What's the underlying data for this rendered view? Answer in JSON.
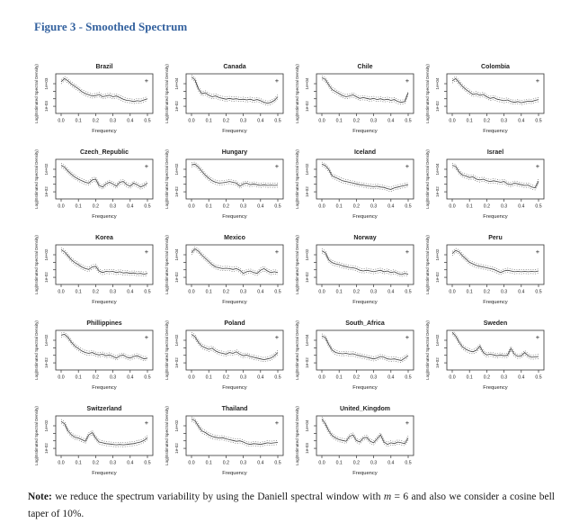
{
  "page": {
    "figure_title": "Figure 3 - Smoothed Spectrum",
    "title_color": "#33619E",
    "note": {
      "label": "Note:",
      "text_before_m": "  we reduce the spectrum variability by using the Daniell spectral window with ",
      "m_symbol": "m",
      "text_after_m": " = 6 and also we consider a cosine bell taper of 10%."
    }
  },
  "axes": {
    "xlabel": "Frequency",
    "ylabel": "Log(Estimated Spectral Density)",
    "x_ticks": [
      "0.0",
      "0.1",
      "0.2",
      "0.3",
      "0.4",
      "0.5"
    ],
    "legend_marker": "+",
    "line_color": "#3c3c3c",
    "band_color": "#5a5a5a"
  },
  "chart_data": {
    "type": "line",
    "title": "Smoothed Spectrum",
    "xlabel": "Frequency",
    "ylabel": "Log(Estimated Spectral Density)",
    "xlim": [
      0.0,
      0.5
    ],
    "grid": false,
    "layout": {
      "rows": 5,
      "cols": 4,
      "plots": 19
    },
    "series_note": "Each subplot: smoothed log spectral density with dotted confidence band (marker '+' legend top-right). y values are fractions of plot-box height between the two labeled log-scale ticks.",
    "x": [
      0.0,
      0.02,
      0.04,
      0.06,
      0.08,
      0.1,
      0.12,
      0.14,
      0.16,
      0.18,
      0.2,
      0.22,
      0.24,
      0.26,
      0.28,
      0.3,
      0.32,
      0.34,
      0.36,
      0.38,
      0.4,
      0.42,
      0.44,
      0.46,
      0.48,
      0.5
    ],
    "charts": [
      {
        "title": "Brazil",
        "y_ticks": [
          "1e-03",
          "1e+03"
        ],
        "shape": [
          0.8,
          0.88,
          0.82,
          0.74,
          0.68,
          0.62,
          0.55,
          0.5,
          0.47,
          0.44,
          0.45,
          0.48,
          0.42,
          0.44,
          0.46,
          0.42,
          0.44,
          0.4,
          0.36,
          0.33,
          0.32,
          0.3,
          0.32,
          0.31,
          0.34,
          0.37
        ]
      },
      {
        "title": "Canada",
        "y_ticks": [
          "1e-02",
          "1e+04"
        ],
        "shape": [
          0.92,
          0.85,
          0.62,
          0.5,
          0.52,
          0.46,
          0.42,
          0.44,
          0.4,
          0.38,
          0.36,
          0.38,
          0.36,
          0.37,
          0.35,
          0.36,
          0.34,
          0.36,
          0.33,
          0.35,
          0.32,
          0.28,
          0.26,
          0.28,
          0.33,
          0.42
        ]
      },
      {
        "title": "Chile",
        "y_ticks": [
          "1e-02",
          "1e+04"
        ],
        "shape": [
          0.9,
          0.86,
          0.72,
          0.6,
          0.55,
          0.5,
          0.45,
          0.42,
          0.44,
          0.47,
          0.42,
          0.38,
          0.4,
          0.38,
          0.36,
          0.38,
          0.35,
          0.37,
          0.34,
          0.36,
          0.33,
          0.35,
          0.3,
          0.28,
          0.3,
          0.52
        ]
      },
      {
        "title": "Colombia",
        "y_ticks": [
          "1e-02",
          "1e+04"
        ],
        "shape": [
          0.82,
          0.88,
          0.78,
          0.68,
          0.6,
          0.54,
          0.48,
          0.5,
          0.46,
          0.48,
          0.42,
          0.38,
          0.4,
          0.36,
          0.34,
          0.32,
          0.34,
          0.3,
          0.28,
          0.3,
          0.27,
          0.29,
          0.31,
          0.3,
          0.33,
          0.35
        ]
      },
      {
        "title": "Czech_Republic",
        "y_ticks": [
          "1e-02",
          "1e+02"
        ],
        "shape": [
          0.85,
          0.8,
          0.7,
          0.62,
          0.55,
          0.5,
          0.46,
          0.42,
          0.4,
          0.48,
          0.5,
          0.34,
          0.3,
          0.38,
          0.42,
          0.38,
          0.32,
          0.42,
          0.44,
          0.36,
          0.32,
          0.4,
          0.36,
          0.3,
          0.34,
          0.4
        ]
      },
      {
        "title": "Hungary",
        "y_ticks": [
          "1e-02",
          "1e+02"
        ],
        "shape": [
          0.86,
          0.88,
          0.8,
          0.7,
          0.6,
          0.52,
          0.46,
          0.42,
          0.4,
          0.41,
          0.42,
          0.44,
          0.42,
          0.4,
          0.32,
          0.38,
          0.4,
          0.36,
          0.38,
          0.36,
          0.34,
          0.36,
          0.34,
          0.35,
          0.34,
          0.35
        ]
      },
      {
        "title": "Iceland",
        "y_ticks": [
          "1e-02",
          "1e+02"
        ],
        "shape": [
          0.88,
          0.84,
          0.74,
          0.58,
          0.54,
          0.5,
          0.46,
          0.44,
          0.42,
          0.4,
          0.38,
          0.36,
          0.35,
          0.33,
          0.32,
          0.31,
          0.32,
          0.3,
          0.29,
          0.26,
          0.24,
          0.28,
          0.3,
          0.32,
          0.34,
          0.36
        ]
      },
      {
        "title": "Israel",
        "y_ticks": [
          "1e-02",
          "1e+04"
        ],
        "shape": [
          0.85,
          0.82,
          0.68,
          0.6,
          0.58,
          0.54,
          0.56,
          0.5,
          0.48,
          0.5,
          0.46,
          0.44,
          0.46,
          0.44,
          0.42,
          0.44,
          0.38,
          0.36,
          0.4,
          0.38,
          0.36,
          0.34,
          0.35,
          0.3,
          0.28,
          0.45
        ]
      },
      {
        "title": "Korea",
        "y_ticks": [
          "1e-02",
          "1e+02"
        ],
        "shape": [
          0.88,
          0.82,
          0.72,
          0.62,
          0.55,
          0.5,
          0.44,
          0.4,
          0.38,
          0.44,
          0.46,
          0.34,
          0.3,
          0.33,
          0.32,
          0.33,
          0.3,
          0.32,
          0.29,
          0.3,
          0.28,
          0.29,
          0.27,
          0.28,
          0.26,
          0.28
        ]
      },
      {
        "title": "Mexico",
        "y_ticks": [
          "1e-02",
          "1e+04"
        ],
        "shape": [
          0.8,
          0.9,
          0.84,
          0.74,
          0.66,
          0.58,
          0.5,
          0.44,
          0.42,
          0.4,
          0.41,
          0.4,
          0.38,
          0.4,
          0.36,
          0.28,
          0.32,
          0.34,
          0.3,
          0.28,
          0.36,
          0.4,
          0.34,
          0.3,
          0.32,
          0.3
        ]
      },
      {
        "title": "Norway",
        "y_ticks": [
          "1e-02",
          "1e+02"
        ],
        "shape": [
          0.85,
          0.8,
          0.62,
          0.55,
          0.52,
          0.5,
          0.47,
          0.45,
          0.43,
          0.42,
          0.4,
          0.36,
          0.34,
          0.36,
          0.34,
          0.32,
          0.34,
          0.36,
          0.32,
          0.34,
          0.3,
          0.32,
          0.28,
          0.25,
          0.28,
          0.26
        ]
      },
      {
        "title": "Peru",
        "y_ticks": [
          "1e-02",
          "1e+02"
        ],
        "shape": [
          0.78,
          0.86,
          0.82,
          0.72,
          0.64,
          0.56,
          0.52,
          0.48,
          0.46,
          0.44,
          0.42,
          0.4,
          0.38,
          0.34,
          0.3,
          0.34,
          0.36,
          0.34,
          0.32,
          0.33,
          0.32,
          0.33,
          0.32,
          0.33,
          0.32,
          0.34
        ]
      },
      {
        "title": "Phillippines",
        "y_ticks": [
          "1e-02",
          "1e+02"
        ],
        "shape": [
          0.88,
          0.9,
          0.82,
          0.7,
          0.6,
          0.54,
          0.48,
          0.44,
          0.42,
          0.44,
          0.4,
          0.38,
          0.4,
          0.36,
          0.38,
          0.34,
          0.3,
          0.36,
          0.38,
          0.32,
          0.3,
          0.34,
          0.36,
          0.32,
          0.28,
          0.3
        ]
      },
      {
        "title": "Poland",
        "y_ticks": [
          "1e-02",
          "1e+02"
        ],
        "shape": [
          0.9,
          0.84,
          0.7,
          0.6,
          0.56,
          0.52,
          0.55,
          0.48,
          0.44,
          0.42,
          0.4,
          0.44,
          0.42,
          0.46,
          0.4,
          0.36,
          0.38,
          0.34,
          0.32,
          0.3,
          0.28,
          0.26,
          0.28,
          0.3,
          0.36,
          0.44
        ]
      },
      {
        "title": "South_Africa",
        "y_ticks": [
          "1e-02",
          "1e+04"
        ],
        "shape": [
          0.86,
          0.82,
          0.64,
          0.5,
          0.44,
          0.42,
          0.41,
          0.42,
          0.4,
          0.41,
          0.38,
          0.36,
          0.34,
          0.32,
          0.3,
          0.28,
          0.3,
          0.34,
          0.32,
          0.28,
          0.27,
          0.28,
          0.26,
          0.24,
          0.3,
          0.36
        ]
      },
      {
        "title": "Sweden",
        "y_ticks": [
          "1e-02",
          "1e+02"
        ],
        "shape": [
          0.95,
          0.86,
          0.7,
          0.58,
          0.52,
          0.48,
          0.46,
          0.5,
          0.6,
          0.44,
          0.38,
          0.4,
          0.38,
          0.36,
          0.38,
          0.36,
          0.37,
          0.54,
          0.4,
          0.34,
          0.36,
          0.44,
          0.36,
          0.32,
          0.33,
          0.34
        ]
      },
      {
        "title": "Switzerland",
        "y_ticks": [
          "1e-02",
          "1e+02"
        ],
        "shape": [
          0.86,
          0.8,
          0.62,
          0.52,
          0.46,
          0.44,
          0.4,
          0.36,
          0.52,
          0.58,
          0.44,
          0.34,
          0.32,
          0.3,
          0.29,
          0.28,
          0.27,
          0.28,
          0.27,
          0.28,
          0.29,
          0.3,
          0.32,
          0.34,
          0.38,
          0.45
        ]
      },
      {
        "title": "Thailand",
        "y_ticks": [
          "1e-02",
          "1e+02"
        ],
        "shape": [
          0.92,
          0.88,
          0.74,
          0.62,
          0.58,
          0.52,
          0.48,
          0.46,
          0.44,
          0.45,
          0.42,
          0.4,
          0.38,
          0.36,
          0.37,
          0.34,
          0.3,
          0.28,
          0.3,
          0.29,
          0.28,
          0.3,
          0.32,
          0.31,
          0.32,
          0.33
        ]
      },
      {
        "title": "United_Kingdom",
        "y_ticks": [
          "1e-03",
          "1e+04"
        ],
        "shape": [
          0.92,
          0.8,
          0.62,
          0.5,
          0.44,
          0.4,
          0.38,
          0.36,
          0.48,
          0.52,
          0.38,
          0.34,
          0.44,
          0.46,
          0.36,
          0.32,
          0.42,
          0.52,
          0.34,
          0.28,
          0.32,
          0.3,
          0.34,
          0.32,
          0.3,
          0.44
        ]
      }
    ]
  }
}
